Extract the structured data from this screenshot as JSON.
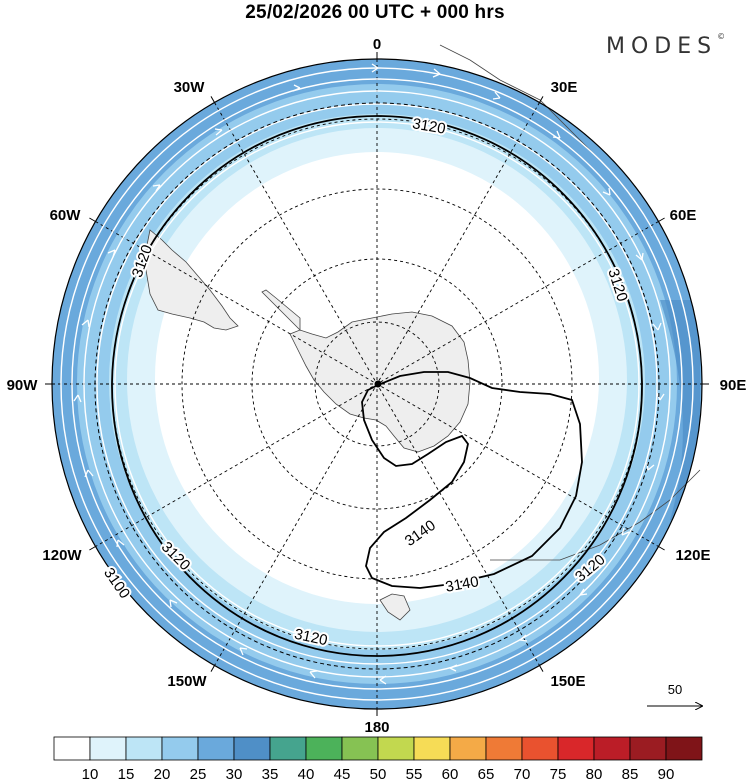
{
  "title": "25/02/2026  00 UTC  + 000 hrs",
  "brand": {
    "name": "MODES",
    "symbol": "©"
  },
  "map": {
    "projection": "south-polar-stereographic",
    "longitude_labels": [
      "0",
      "30E",
      "60E",
      "90E",
      "120E",
      "150E",
      "180",
      "150W",
      "120W",
      "90W",
      "60W",
      "30W"
    ],
    "contour_labels": [
      "3120",
      "3120",
      "3120",
      "3120",
      "3120",
      "3140",
      "3140",
      "3100"
    ],
    "reference_vector": {
      "label": "50"
    }
  },
  "colorbar": {
    "ticks": [
      "10",
      "15",
      "20",
      "25",
      "30",
      "35",
      "40",
      "45",
      "50",
      "55",
      "60",
      "65",
      "70",
      "75",
      "80",
      "85",
      "90"
    ],
    "colors": [
      "#ffffff",
      "#dff3fb",
      "#bde5f6",
      "#94cbed",
      "#6aa9dc",
      "#4f8fc7",
      "#45a48e",
      "#4cb25a",
      "#86c253",
      "#c2d84f",
      "#f6dc56",
      "#f4aa47",
      "#ef7a36",
      "#e9522f",
      "#d9272a",
      "#bb1d27",
      "#9b1c22",
      "#7f1418"
    ]
  }
}
